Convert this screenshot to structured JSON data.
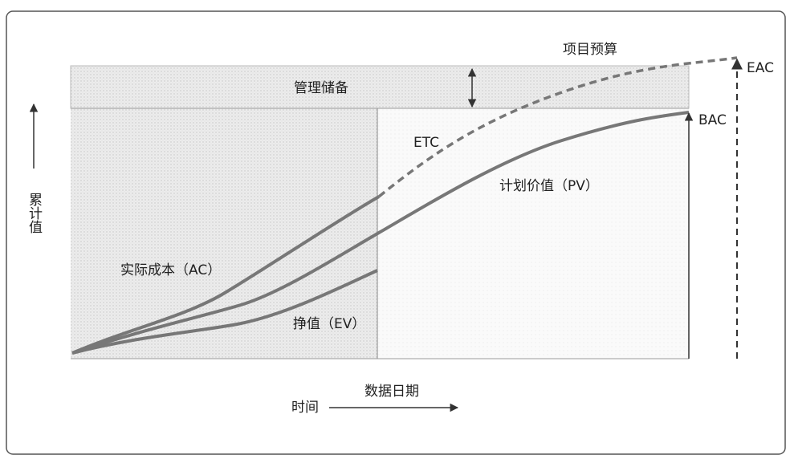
{
  "labels": {
    "project_budget": "项目预算",
    "eac": "EAC",
    "management_reserve": "管理储备",
    "bac": "BAC",
    "etc": "ETC",
    "pv": "计划价值（PV）",
    "y_axis": "累计值",
    "ac": "实际成本（AC）",
    "ev": "挣值（EV）",
    "data_date": "数据日期",
    "x_axis": "时间"
  }
}
